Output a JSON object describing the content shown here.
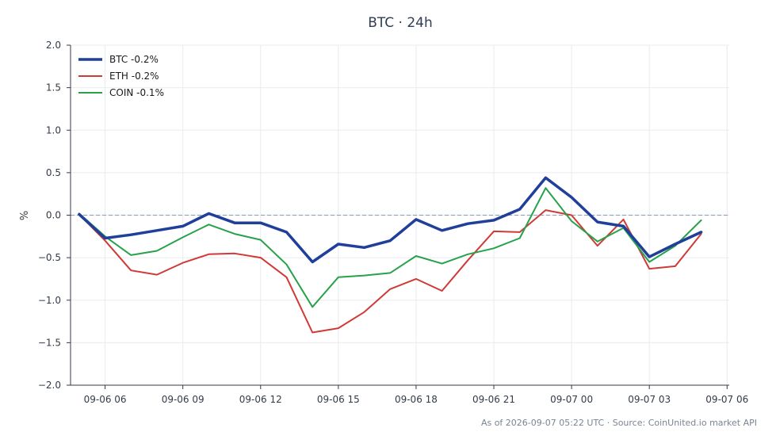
{
  "chart_data": {
    "type": "line",
    "title": "BTC · 24h",
    "xlabel": "",
    "ylabel": "%",
    "ylim": [
      -2.0,
      2.0
    ],
    "xlim": [
      "2026-09-06 04:40",
      "2026-09-07 06:05"
    ],
    "y_ticks": [
      "2.0",
      "1.5",
      "1.0",
      "0.5",
      "0.0",
      "−0.5",
      "−1.0",
      "−1.5",
      "−2.0"
    ],
    "x_ticks": [
      "09-06 06",
      "09-06 09",
      "09-06 12",
      "09-06 15",
      "09-06 18",
      "09-06 21",
      "09-07 00",
      "09-07 03",
      "09-07 06"
    ],
    "grid": true,
    "zero_line": true,
    "legend_position": "top-left",
    "x": [
      "2026-09-06 05:00",
      "2026-09-06 06:00",
      "2026-09-06 07:00",
      "2026-09-06 08:00",
      "2026-09-06 09:00",
      "2026-09-06 10:00",
      "2026-09-06 11:00",
      "2026-09-06 12:00",
      "2026-09-06 13:00",
      "2026-09-06 14:00",
      "2026-09-06 15:00",
      "2026-09-06 16:00",
      "2026-09-06 17:00",
      "2026-09-06 18:00",
      "2026-09-06 19:00",
      "2026-09-06 20:00",
      "2026-09-06 21:00",
      "2026-09-06 22:00",
      "2026-09-06 23:00",
      "2026-09-07 00:00",
      "2026-09-07 01:00",
      "2026-09-07 02:00",
      "2026-09-07 03:00",
      "2026-09-07 04:00",
      "2026-09-07 05:00"
    ],
    "series": [
      {
        "name": "BTC -0.2%",
        "color": "#1f3f9a",
        "values": [
          0.01,
          -0.27,
          -0.23,
          -0.18,
          -0.13,
          0.02,
          -0.09,
          -0.09,
          -0.2,
          -0.55,
          -0.34,
          -0.38,
          -0.3,
          -0.05,
          -0.18,
          -0.1,
          -0.06,
          0.07,
          0.44,
          0.21,
          -0.08,
          -0.13,
          -0.49,
          -0.34,
          -0.2
        ]
      },
      {
        "name": "ETH -0.2%",
        "color": "#d03a36",
        "values": [
          0.01,
          -0.3,
          -0.65,
          -0.7,
          -0.56,
          -0.46,
          -0.45,
          -0.5,
          -0.73,
          -1.38,
          -1.33,
          -1.14,
          -0.87,
          -0.75,
          -0.89,
          -0.53,
          -0.19,
          -0.2,
          0.06,
          0.0,
          -0.36,
          -0.05,
          -0.63,
          -0.6,
          -0.22
        ]
      },
      {
        "name": "COIN -0.1%",
        "color": "#27a24b",
        "values": [
          0.02,
          -0.25,
          -0.47,
          -0.42,
          -0.26,
          -0.11,
          -0.22,
          -0.29,
          -0.58,
          -1.08,
          -0.73,
          -0.71,
          -0.68,
          -0.48,
          -0.57,
          -0.46,
          -0.39,
          -0.27,
          0.32,
          -0.07,
          -0.31,
          -0.15,
          -0.55,
          -0.36,
          -0.06
        ]
      }
    ]
  },
  "footer": {
    "note": "As of 2026-09-07 05:22 UTC · Source: CoinUnited.io market API"
  }
}
